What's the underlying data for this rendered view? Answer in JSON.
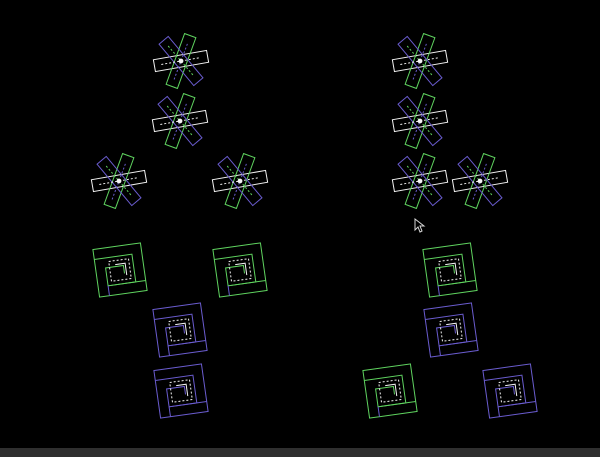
{
  "colors": {
    "background": "#000000",
    "white": "#f2f2f2",
    "green": "#5fd35f",
    "blue": "#6a5ccf",
    "bottom_bar": "#2f2f2f"
  },
  "icons": {
    "cursor": "mouse-pointer-icon"
  }
}
